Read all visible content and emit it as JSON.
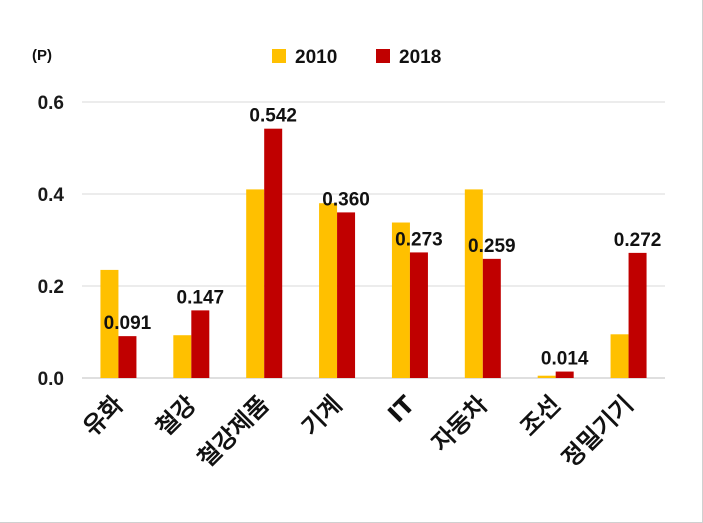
{
  "chart_data": {
    "type": "bar",
    "unit_label": "(P)",
    "categories": [
      "유화",
      "철강",
      "철강제품",
      "기계",
      "IT",
      "자동차",
      "조선",
      "정밀기기"
    ],
    "series": [
      {
        "name": "2010",
        "color": "#FFC000",
        "values": [
          0.235,
          0.093,
          0.41,
          0.38,
          0.338,
          0.41,
          0.005,
          0.095
        ]
      },
      {
        "name": "2018",
        "color": "#C00000",
        "values": [
          0.091,
          0.147,
          0.542,
          0.36,
          0.273,
          0.259,
          0.014,
          0.272
        ],
        "data_labels": [
          "0.091",
          "0.147",
          "0.542",
          "0.360",
          "0.273",
          "0.259",
          "0.014",
          "0.272"
        ]
      }
    ],
    "ylim": [
      0,
      0.6
    ],
    "yticks": [
      "0.0",
      "0.2",
      "0.4",
      "0.6"
    ],
    "legend_position": "top",
    "grid": true
  }
}
